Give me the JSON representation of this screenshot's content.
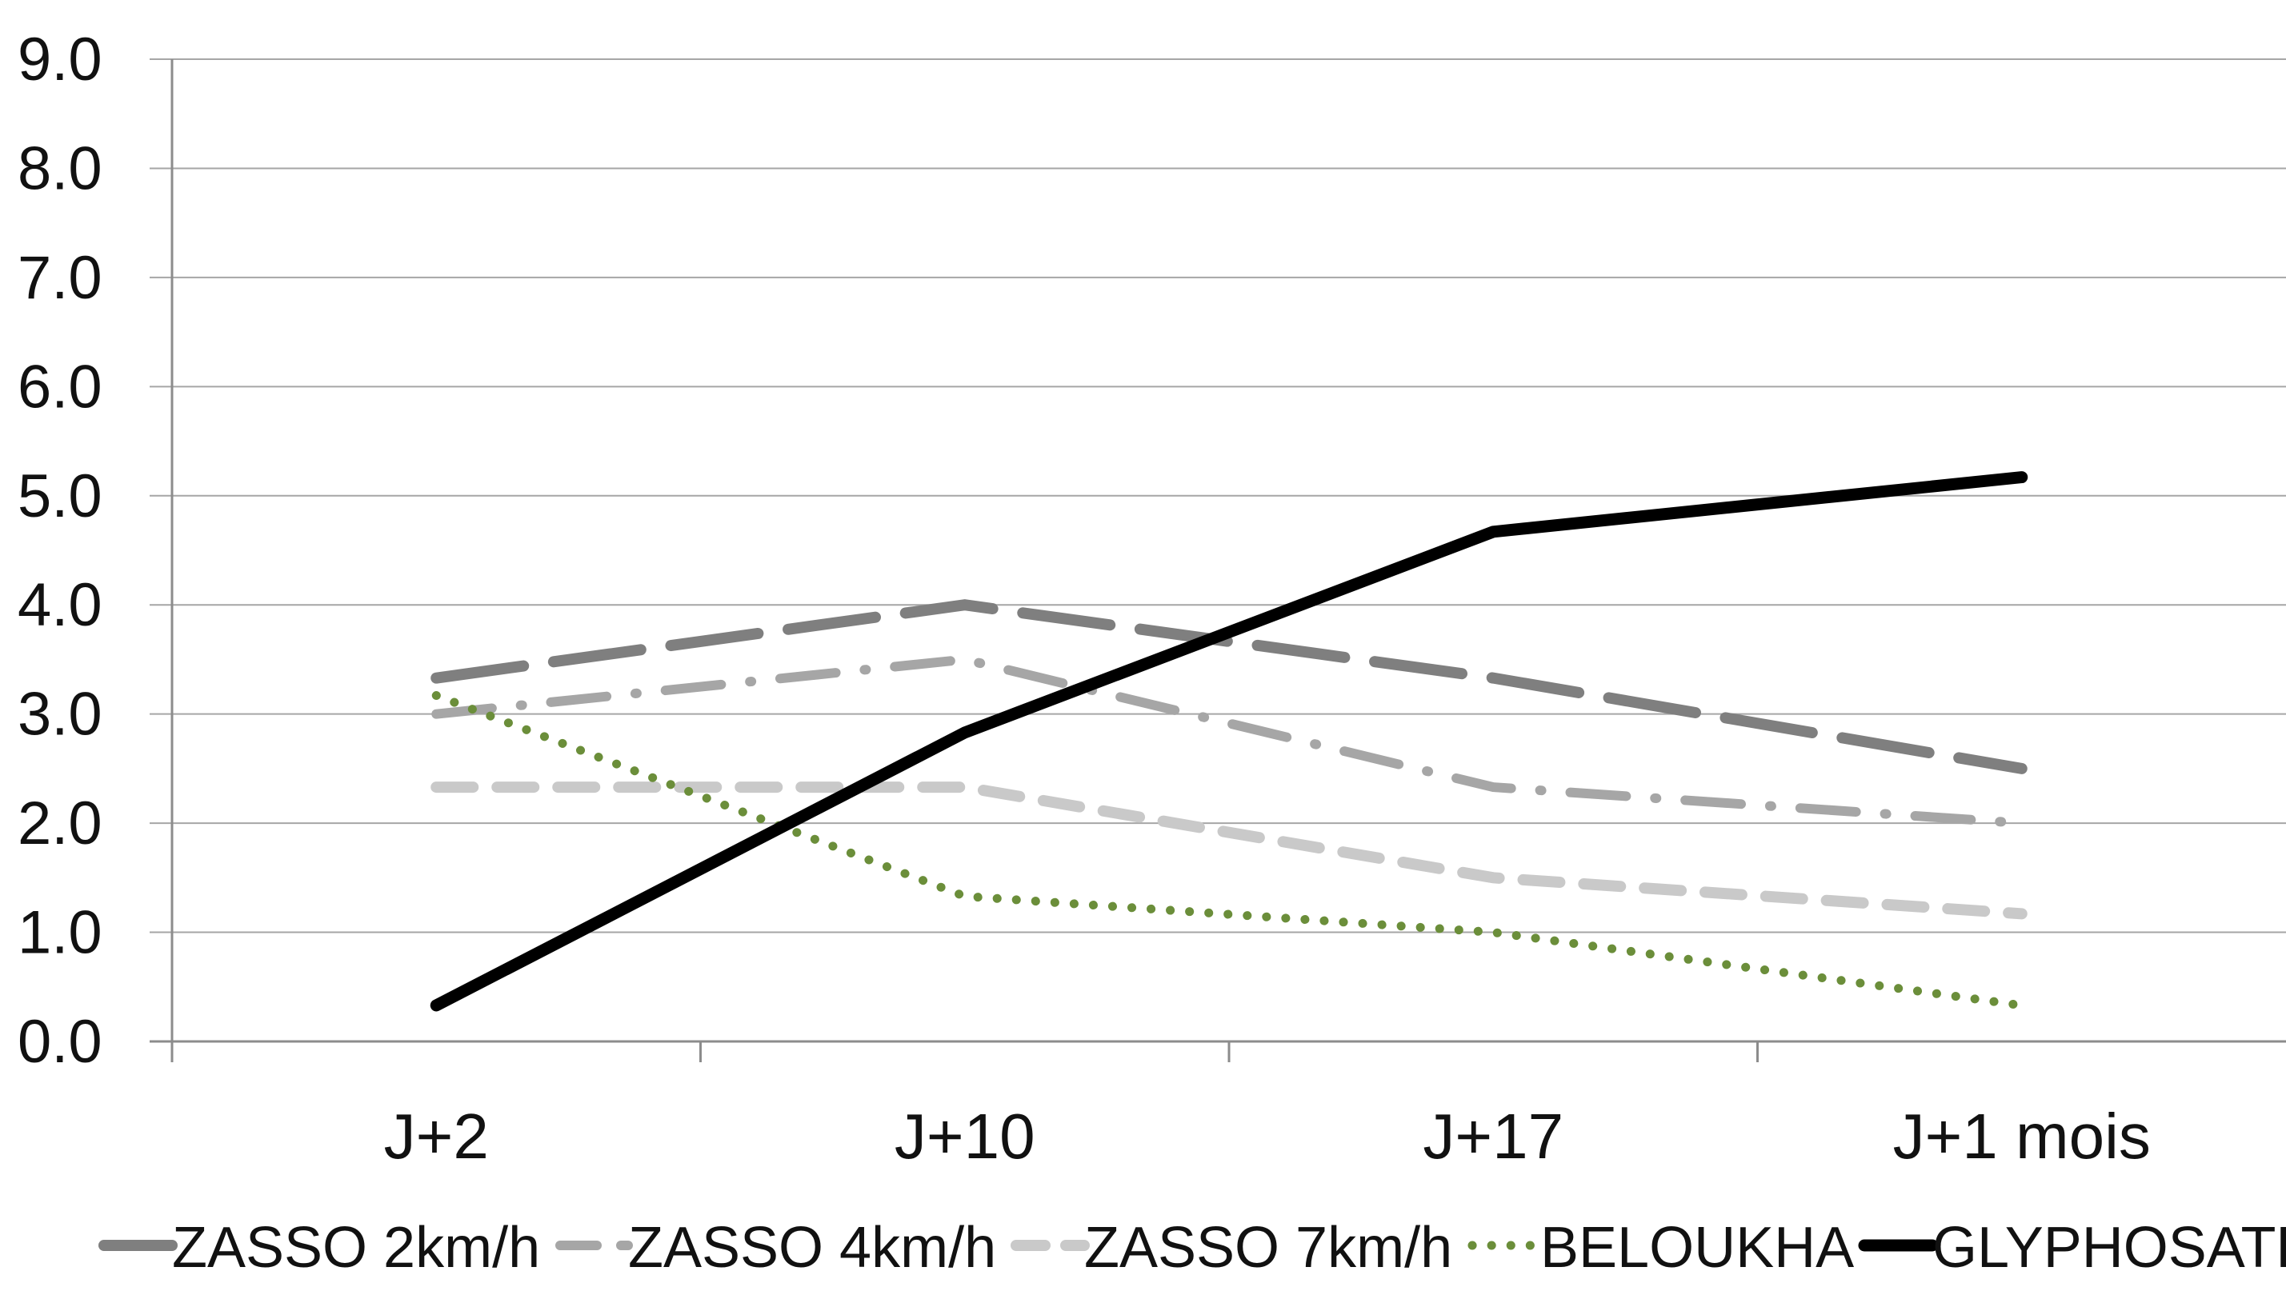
{
  "chart_data": {
    "type": "line",
    "title": "",
    "xlabel": "",
    "ylabel": "",
    "categories": [
      "J+2",
      "J+10",
      "J+17",
      "J+1 mois"
    ],
    "ylim": [
      0,
      9
    ],
    "yticks": [
      "0.0",
      "1.0",
      "2.0",
      "3.0",
      "4.0",
      "5.0",
      "6.0",
      "7.0",
      "8.0",
      "9.0"
    ],
    "grid": true,
    "legend_position": "bottom",
    "series": [
      {
        "name": "ZASSO 2km/h",
        "values": [
          3.33,
          4.0,
          3.33,
          2.5
        ],
        "color": "#7f7f7f",
        "style": "long-dash"
      },
      {
        "name": "ZASSO 4km/h",
        "values": [
          3.0,
          3.5,
          2.33,
          2.0
        ],
        "color": "#a6a6a6",
        "style": "dash-dot"
      },
      {
        "name": "ZASSO 7km/h",
        "values": [
          2.33,
          2.33,
          1.5,
          1.17
        ],
        "color": "#c9c9c9",
        "style": "dash"
      },
      {
        "name": "BELOUKHA",
        "values": [
          3.17,
          1.33,
          1.0,
          0.33
        ],
        "color": "#6b8e3a",
        "style": "dot"
      },
      {
        "name": "GLYPHOSATE",
        "values": [
          0.33,
          2.83,
          4.67,
          5.17
        ],
        "color": "#000000",
        "style": "solid"
      }
    ]
  }
}
